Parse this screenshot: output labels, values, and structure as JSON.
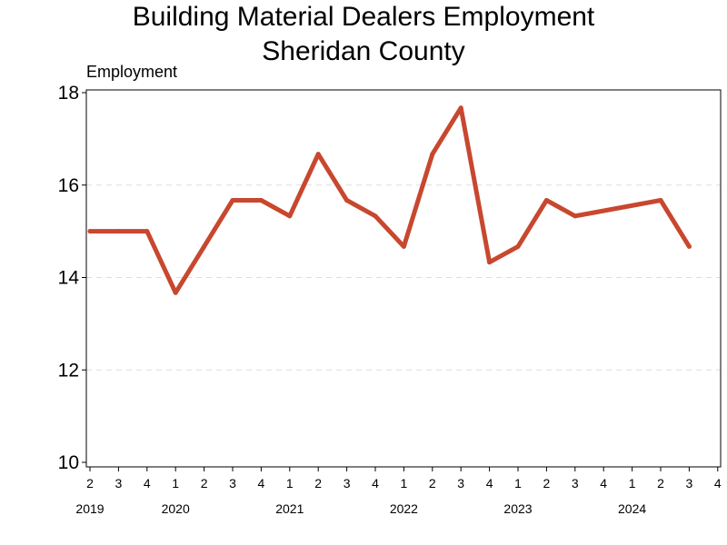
{
  "chart_data": {
    "type": "line",
    "title": "Building Material Dealers Employment",
    "subtitle": "Sheridan County",
    "ylabel": "Employment",
    "xlabel": "",
    "ylim": [
      10,
      18
    ],
    "yticks": [
      10,
      12,
      14,
      16,
      18
    ],
    "grid": true,
    "legend": "none",
    "line_color": "#c8472f",
    "quarters": [
      "2",
      "3",
      "4",
      "1",
      "2",
      "3",
      "4",
      "1",
      "2",
      "3",
      "4",
      "1",
      "2",
      "3",
      "4",
      "1",
      "2",
      "3",
      "4",
      "1",
      "2",
      "3",
      "4"
    ],
    "year_labels": [
      {
        "label": "2019",
        "index": 0
      },
      {
        "label": "2020",
        "index": 3
      },
      {
        "label": "2021",
        "index": 7
      },
      {
        "label": "2022",
        "index": 11
      },
      {
        "label": "2023",
        "index": 15
      },
      {
        "label": "2024",
        "index": 19
      }
    ],
    "values": [
      15,
      15,
      15,
      13.67,
      14.67,
      15.67,
      15.67,
      15.33,
      16.67,
      15.67,
      15.33,
      14.67,
      16.67,
      17.67,
      14.33,
      14.67,
      15.67,
      15.33,
      null,
      null,
      15.67,
      14.67,
      null
    ]
  }
}
